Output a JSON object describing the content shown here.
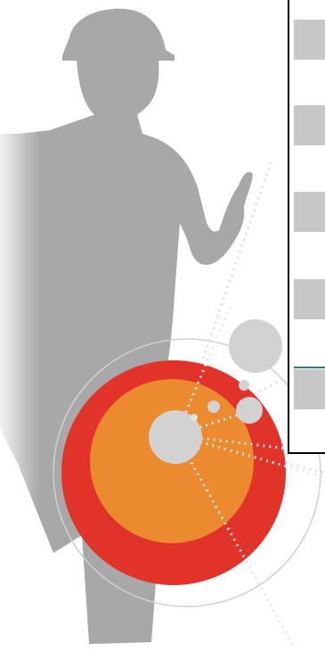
{
  "scene": {
    "figure_icon": "worker-silhouette-icon",
    "target_icon": "network-target-icon"
  },
  "colors": {
    "silhouette": "#a8a8a8",
    "outer_red": "#e2332b",
    "inner_orange": "#ec8a2f",
    "node_grey": "#d2d2d2",
    "orbit_line": "#d0d0d0",
    "panel_fill": "#c7c7c7",
    "panel_border": "#000000",
    "divider_teal": "#2e7d7a"
  },
  "panel": {
    "rows": [
      {
        "label": ""
      },
      {
        "label": ""
      },
      {
        "label": ""
      },
      {
        "label": ""
      },
      {
        "label": ""
      }
    ]
  }
}
